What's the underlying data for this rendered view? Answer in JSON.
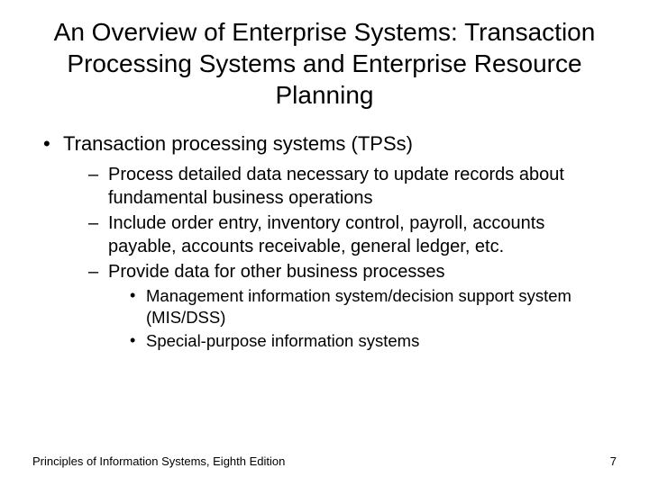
{
  "title": "An Overview of Enterprise Systems: Transaction Processing Systems and Enterprise Resource Planning",
  "bullets": {
    "l1_0": "Transaction processing systems (TPSs)",
    "l2_0": "Process detailed data necessary to update records about fundamental business operations",
    "l2_1": "Include order entry, inventory control, payroll, accounts payable, accounts receivable, general ledger, etc.",
    "l2_2": "Provide data for other business processes",
    "l3_0": "Management information system/decision support system (MIS/DSS)",
    "l3_1": "Special-purpose information systems"
  },
  "footer": {
    "source": "Principles of Information Systems, Eighth Edition",
    "page": "7"
  },
  "style": {
    "background": "#ffffff",
    "text_color": "#000000",
    "font_family": "Arial",
    "title_fontsize": 28,
    "l1_fontsize": 22,
    "l2_fontsize": 20,
    "l3_fontsize": 18.5,
    "footer_fontsize": 13
  }
}
